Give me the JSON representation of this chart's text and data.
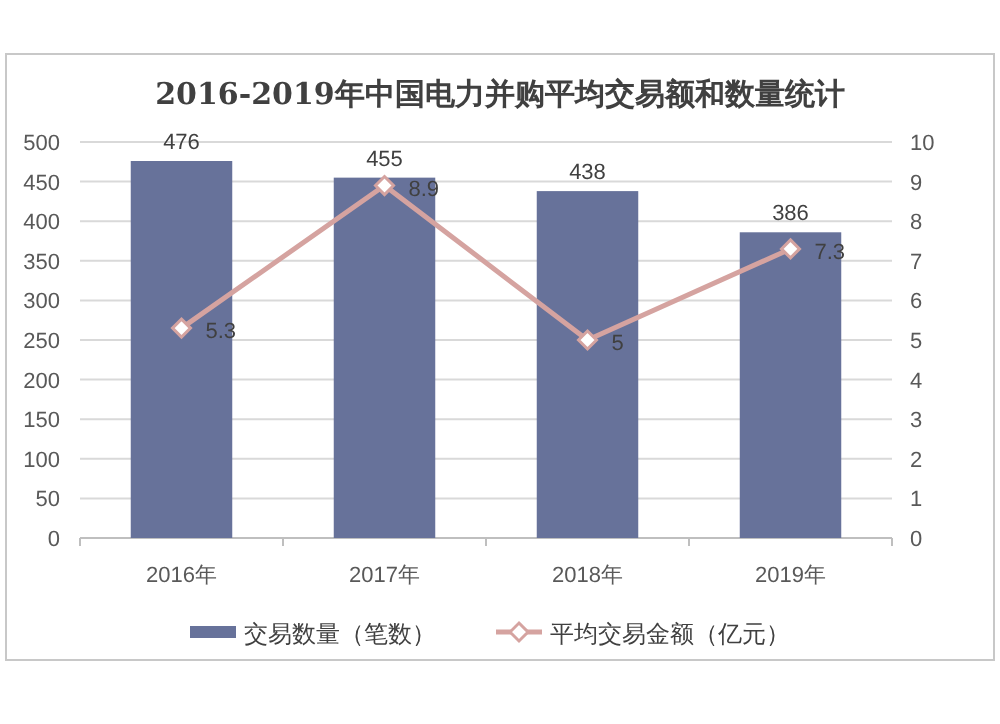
{
  "chart_data": {
    "type": "bar",
    "title": "2016-2019年中国电力并购平均交易额和数量统计",
    "categories": [
      "2016年",
      "2017年",
      "2018年",
      "2019年"
    ],
    "series": [
      {
        "name": "交易数量（笔数）",
        "color": "#67729a",
        "values": [
          476,
          455,
          438,
          386
        ]
      },
      {
        "name": "平均交易金额（亿元）",
        "type": "line",
        "axis": "y2",
        "color": "#d5a3a0",
        "marker": "diamond",
        "values": [
          5.3,
          8.9,
          5,
          7.3
        ]
      }
    ],
    "ylim": [
      0,
      500
    ],
    "yticks": [
      0,
      50,
      100,
      150,
      200,
      250,
      300,
      350,
      400,
      450,
      500
    ],
    "y2lim": [
      0,
      10
    ],
    "y2ticks": [
      0,
      1,
      2,
      3,
      4,
      5,
      6,
      7,
      8,
      9,
      10
    ],
    "grid": "y",
    "legend": "bottom",
    "data_labels": true
  }
}
